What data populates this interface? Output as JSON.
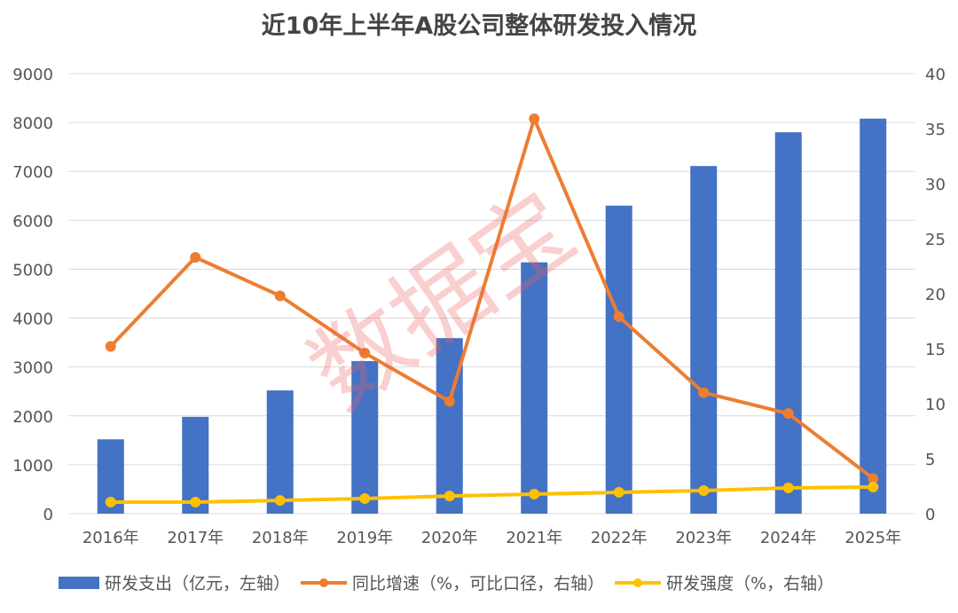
{
  "chart_data": {
    "type": "bar+line",
    "title": "近10年上半年A股公司整体研发投入情况",
    "categories": [
      "2016年",
      "2017年",
      "2018年",
      "2019年",
      "2020年",
      "2021年",
      "2022年",
      "2023年",
      "2024年",
      "2025年"
    ],
    "left_axis": {
      "range": [
        0,
        9000
      ],
      "ticks": [
        0,
        1000,
        2000,
        3000,
        4000,
        5000,
        6000,
        7000,
        8000,
        9000
      ]
    },
    "right_axis": {
      "range": [
        0,
        40
      ],
      "ticks": [
        0,
        5,
        10,
        15,
        20,
        25,
        30,
        35,
        40
      ]
    },
    "grid": true,
    "legend_position": "bottom",
    "series": [
      {
        "name": "研发支出（亿元，左轴）",
        "type": "bar",
        "axis": "left",
        "color": "#4472C4",
        "values": [
          1520,
          1980,
          2520,
          3120,
          3590,
          5140,
          6300,
          7110,
          7800,
          8080
        ]
      },
      {
        "name": "同比增速（%，可比口径，右轴）",
        "type": "line",
        "axis": "right",
        "color": "#ED7D31",
        "values": [
          15.2,
          23.3,
          19.8,
          14.6,
          10.2,
          35.9,
          17.9,
          11.0,
          9.1,
          3.2
        ]
      },
      {
        "name": "研发强度（%，右轴）",
        "type": "line",
        "axis": "right",
        "color": "#FFC000",
        "values": [
          1.05,
          1.05,
          1.2,
          1.37,
          1.6,
          1.77,
          1.94,
          2.1,
          2.34,
          2.42
        ]
      }
    ],
    "watermark": "数据宝"
  }
}
